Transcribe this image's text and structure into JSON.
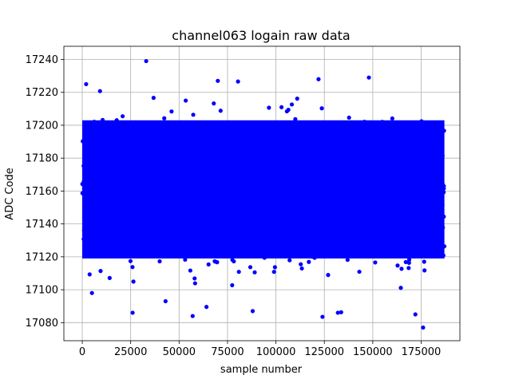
{
  "chart_data": {
    "type": "scatter",
    "title": "channel063 logain raw data",
    "xlabel": "sample number",
    "ylabel": "ADC Code",
    "xlim": [
      -9500,
      195000
    ],
    "ylim": [
      17069,
      17248
    ],
    "x_ticks": [
      0,
      25000,
      50000,
      75000,
      100000,
      125000,
      150000,
      175000
    ],
    "x_tick_labels": [
      "0",
      "25000",
      "50000",
      "75000",
      "100000",
      "125000",
      "150000",
      "175000"
    ],
    "y_ticks": [
      17080,
      17100,
      17120,
      17140,
      17160,
      17180,
      17200,
      17220,
      17240
    ],
    "y_tick_labels": [
      "17080",
      "17100",
      "17120",
      "17140",
      "17160",
      "17180",
      "17200",
      "17220",
      "17240"
    ],
    "grid": true,
    "marker_color": "#0000ff",
    "series": [
      {
        "sample_count": 187000,
        "mean": 17159,
        "dense_band": [
          17105,
          17215
        ],
        "extremes": [
          {
            "x": 33000,
            "y": 17239
          },
          {
            "x": 148000,
            "y": 17229
          },
          {
            "x": 122000,
            "y": 17228
          },
          {
            "x": 70000,
            "y": 17227
          },
          {
            "x": 2000,
            "y": 17225
          },
          {
            "x": 172000,
            "y": 17085
          },
          {
            "x": 57000,
            "y": 17084
          },
          {
            "x": 176000,
            "y": 17077
          },
          {
            "x": 26000,
            "y": 17086
          },
          {
            "x": 88000,
            "y": 17087
          },
          {
            "x": 132000,
            "y": 17086
          },
          {
            "x": 5000,
            "y": 17098
          },
          {
            "x": 43000,
            "y": 17093
          }
        ]
      }
    ]
  }
}
